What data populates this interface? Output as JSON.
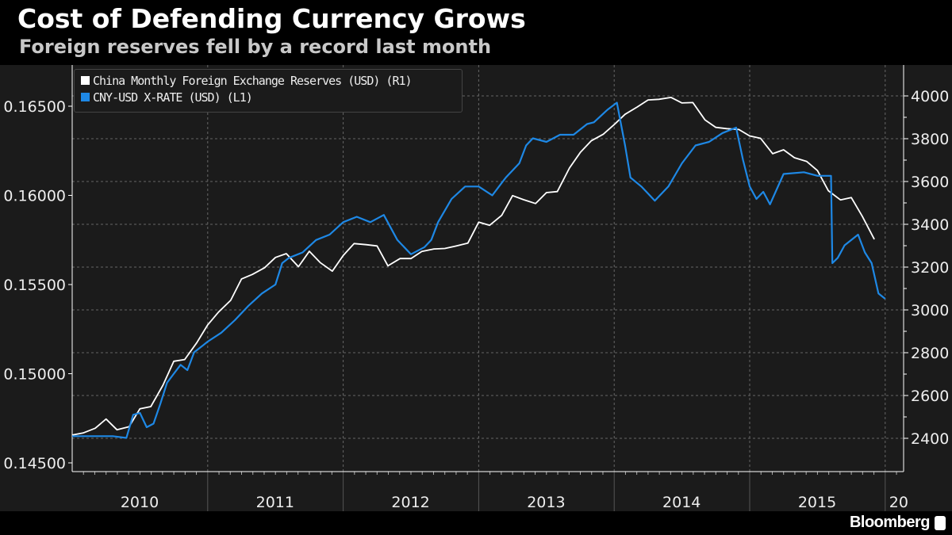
{
  "title": "Cost of Defending Currency Grows",
  "subtitle": "Foreign reserves fell by a record last month",
  "brand": "Bloomberg",
  "colors": {
    "reserves": "#ffffff",
    "rate": "#1e88e5",
    "background": "#1b1b1b"
  },
  "chart_data": {
    "type": "line",
    "title": "Cost of Defending Currency Grows",
    "subtitle": "Foreign reserves fell by a record last month",
    "x_ticks": [
      "2010",
      "2011",
      "2012",
      "2013",
      "2014",
      "2015",
      "20"
    ],
    "xlim": [
      2010,
      2016.14
    ],
    "left_axis": {
      "ylim": [
        0.1445,
        0.1671
      ],
      "ticks": [
        "0.14500",
        "0.15000",
        "0.15500",
        "0.16000",
        "0.16500"
      ]
    },
    "right_axis": {
      "ylim": [
        2340,
        4050
      ],
      "ticks": [
        "2400",
        "2600",
        "2800",
        "3000",
        "3200",
        "3400",
        "3600",
        "3800",
        "4000"
      ]
    },
    "grid": true,
    "legend_position": "top-left",
    "series": [
      {
        "name": "China Monthly Foreign Exchange Reserves (USD)  (R1)",
        "axis": "right",
        "color": "#ffffff",
        "x": [
          2010.0,
          2010.08,
          2010.17,
          2010.25,
          2010.33,
          2010.42,
          2010.5,
          2010.58,
          2010.67,
          2010.75,
          2010.83,
          2010.92,
          2011.0,
          2011.08,
          2011.17,
          2011.25,
          2011.33,
          2011.42,
          2011.5,
          2011.58,
          2011.67,
          2011.75,
          2011.83,
          2011.92,
          2012.0,
          2012.08,
          2012.17,
          2012.25,
          2012.33,
          2012.42,
          2012.5,
          2012.58,
          2012.67,
          2012.75,
          2012.83,
          2012.92,
          2013.0,
          2013.08,
          2013.17,
          2013.25,
          2013.33,
          2013.42,
          2013.5,
          2013.58,
          2013.67,
          2013.75,
          2013.83,
          2013.92,
          2014.0,
          2014.08,
          2014.17,
          2014.25,
          2014.33,
          2014.42,
          2014.5,
          2014.58,
          2014.67,
          2014.75,
          2014.83,
          2014.92,
          2015.0,
          2015.08,
          2015.17,
          2015.25,
          2015.33,
          2015.42,
          2015.5,
          2015.58,
          2015.67,
          2015.75,
          2015.83,
          2015.92
        ],
        "values": [
          2415,
          2425,
          2447,
          2490,
          2440,
          2454,
          2538,
          2548,
          2648,
          2760,
          2768,
          2847,
          2930,
          2990,
          3045,
          3145,
          3166,
          3197,
          3245,
          3263,
          3202,
          3274,
          3221,
          3181,
          3254,
          3310,
          3305,
          3299,
          3206,
          3240,
          3240,
          3273,
          3285,
          3287,
          3298,
          3312,
          3410,
          3395,
          3442,
          3534,
          3515,
          3497,
          3548,
          3553,
          3663,
          3736,
          3790,
          3821,
          3866,
          3914,
          3948,
          3981,
          3984,
          3993,
          3967,
          3969,
          3888,
          3853,
          3847,
          3843,
          3813,
          3802,
          3730,
          3748,
          3711,
          3694,
          3651,
          3557,
          3514,
          3525,
          3438,
          3330
        ]
      },
      {
        "name": "CNY-USD X-RATE (USD)  (L1)",
        "axis": "left",
        "color": "#1e88e5",
        "x": [
          2010.0,
          2010.1,
          2010.2,
          2010.3,
          2010.4,
          2010.45,
          2010.5,
          2010.55,
          2010.6,
          2010.65,
          2010.7,
          2010.75,
          2010.8,
          2010.85,
          2010.9,
          2010.95,
          2011.0,
          2011.1,
          2011.2,
          2011.3,
          2011.4,
          2011.5,
          2011.55,
          2011.6,
          2011.7,
          2011.8,
          2011.9,
          2012.0,
          2012.1,
          2012.2,
          2012.3,
          2012.4,
          2012.5,
          2012.6,
          2012.65,
          2012.7,
          2012.8,
          2012.9,
          2013.0,
          2013.1,
          2013.2,
          2013.3,
          2013.35,
          2013.4,
          2013.5,
          2013.6,
          2013.7,
          2013.8,
          2013.85,
          2013.95,
          2014.02,
          2014.08,
          2014.12,
          2014.2,
          2014.3,
          2014.4,
          2014.5,
          2014.6,
          2014.7,
          2014.8,
          2014.9,
          2014.95,
          2015.0,
          2015.05,
          2015.1,
          2015.15,
          2015.25,
          2015.4,
          2015.5,
          2015.6,
          2015.61,
          2015.65,
          2015.7,
          2015.75,
          2015.8,
          2015.85,
          2015.9,
          2015.95,
          2016.0
        ],
        "values": [
          0.1465,
          0.1465,
          0.1465,
          0.1465,
          0.1464,
          0.1477,
          0.1478,
          0.147,
          0.1472,
          0.1483,
          0.1495,
          0.15,
          0.1505,
          0.1502,
          0.1512,
          0.1515,
          0.1518,
          0.1523,
          0.153,
          0.1538,
          0.1545,
          0.155,
          0.1562,
          0.1565,
          0.1568,
          0.1575,
          0.1578,
          0.1585,
          0.1588,
          0.1585,
          0.1589,
          0.1575,
          0.1567,
          0.1571,
          0.1575,
          0.1585,
          0.1598,
          0.1605,
          0.1605,
          0.16,
          0.161,
          0.1618,
          0.1628,
          0.1632,
          0.163,
          0.1634,
          0.1634,
          0.164,
          0.1641,
          0.1648,
          0.1652,
          0.1628,
          0.161,
          0.1605,
          0.1597,
          0.1605,
          0.1618,
          0.1628,
          0.163,
          0.1635,
          0.1638,
          0.162,
          0.1605,
          0.1598,
          0.1602,
          0.1595,
          0.1612,
          0.1613,
          0.1611,
          0.1611,
          0.1562,
          0.1565,
          0.1572,
          0.1575,
          0.1578,
          0.1568,
          0.1562,
          0.1545,
          0.1542
        ]
      }
    ]
  }
}
